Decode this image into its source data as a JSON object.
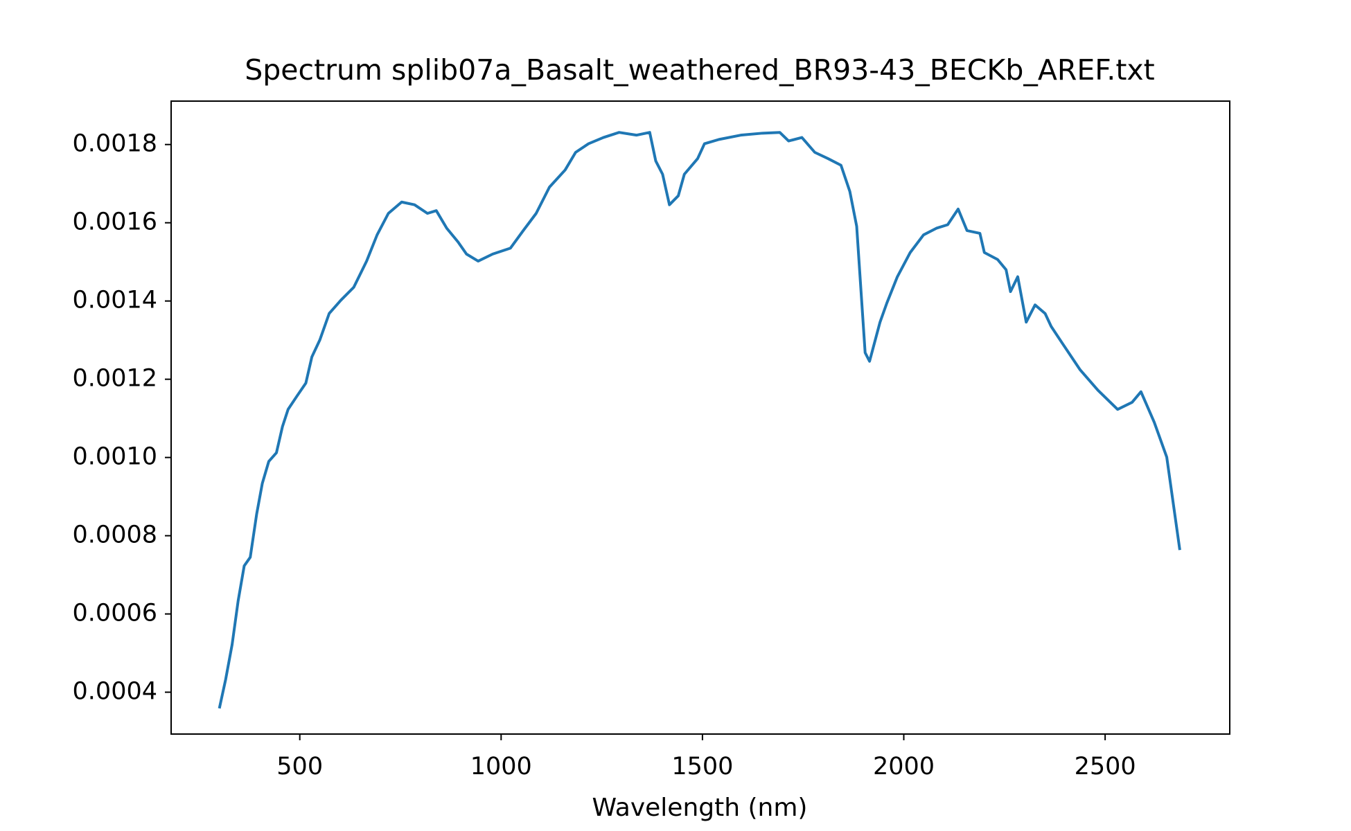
{
  "chart_data": {
    "type": "line",
    "title": "Spectrum splib07a_Basalt_weathered_BR93-43_BECKb_AREF.txt",
    "x_label": "Wavelength (nm)",
    "color": "#1f77b4",
    "x": [
      301,
      316,
      332,
      347,
      362,
      377,
      393,
      407,
      423,
      442,
      457,
      471,
      493,
      515,
      530,
      550,
      573,
      602,
      634,
      666,
      692,
      720,
      753,
      785,
      817,
      839,
      865,
      893,
      914,
      943,
      979,
      1023,
      1055,
      1087,
      1120,
      1159,
      1185,
      1217,
      1254,
      1293,
      1336,
      1369,
      1384,
      1401,
      1418,
      1440,
      1455,
      1488,
      1505,
      1541,
      1595,
      1649,
      1692,
      1714,
      1747,
      1779,
      1812,
      1844,
      1866,
      1883,
      1904,
      1915,
      1941,
      1958,
      1984,
      2016,
      2049,
      2081,
      2109,
      2135,
      2157,
      2189,
      2200,
      2233,
      2254,
      2265,
      2283,
      2304,
      2326,
      2351,
      2366,
      2395,
      2438,
      2482,
      2531,
      2567,
      2589,
      2622,
      2653,
      2685
    ],
    "values": [
      0.000362,
      0.000433,
      0.000522,
      0.000634,
      0.000723,
      0.000745,
      0.000856,
      0.000934,
      0.00099,
      0.001012,
      0.001079,
      0.001123,
      0.001157,
      0.00119,
      0.001257,
      0.001301,
      0.001368,
      0.001402,
      0.001435,
      0.001502,
      0.001569,
      0.001624,
      0.001653,
      0.001646,
      0.001624,
      0.001631,
      0.001586,
      0.001551,
      0.00152,
      0.001502,
      0.00152,
      0.001535,
      0.00158,
      0.001624,
      0.001691,
      0.001735,
      0.00178,
      0.001802,
      0.001818,
      0.001831,
      0.001824,
      0.001831,
      0.001758,
      0.001724,
      0.001646,
      0.001669,
      0.001724,
      0.001764,
      0.001802,
      0.001813,
      0.001824,
      0.001829,
      0.001831,
      0.001809,
      0.001818,
      0.00178,
      0.001764,
      0.001747,
      0.00168,
      0.001591,
      0.001268,
      0.001246,
      0.001346,
      0.001395,
      0.001462,
      0.001524,
      0.001569,
      0.001586,
      0.001595,
      0.001635,
      0.00158,
      0.001573,
      0.001524,
      0.001506,
      0.00148,
      0.001424,
      0.001462,
      0.001346,
      0.00139,
      0.001368,
      0.001335,
      0.00129,
      0.001224,
      0.001172,
      0.001123,
      0.001141,
      0.001168,
      0.00109,
      0.001001,
      0.000767
    ],
    "xlim": [
      180.5,
      2809.5
    ],
    "ylim": [
      0.000293,
      0.001911
    ],
    "xticks": [
      500,
      1000,
      1500,
      2000,
      2500
    ],
    "yticks": [
      0.0004,
      0.0006,
      0.0008,
      {
        "value": 0.001,
        "label": "0.0010"
      },
      0.0012,
      0.0014,
      0.0016,
      0.0018
    ]
  }
}
